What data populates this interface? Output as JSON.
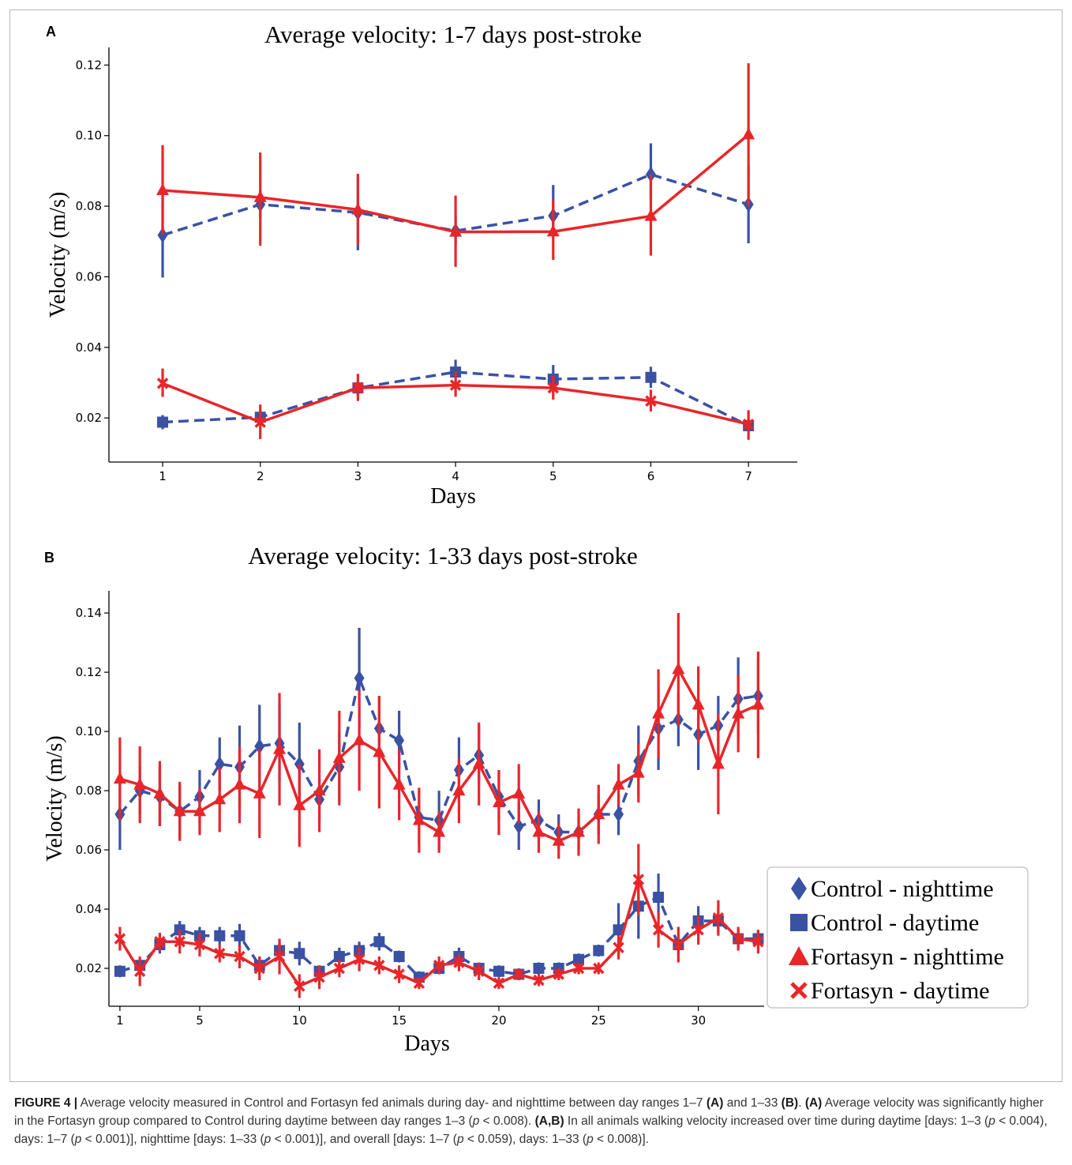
{
  "panels": {
    "a": {
      "letter": "A"
    },
    "b": {
      "letter": "B"
    }
  },
  "chart_data": [
    {
      "type": "line",
      "title": "Average velocity: 1-7 days post-stroke",
      "xlabel": "Days",
      "ylabel": "Velocity (m/s)",
      "x": [
        1,
        2,
        3,
        4,
        5,
        6,
        7
      ],
      "xticks": [
        1,
        2,
        3,
        4,
        5,
        6,
        7
      ],
      "yticks": [
        0.02,
        0.04,
        0.06,
        0.08,
        0.1,
        0.12
      ],
      "ytick_labels": [
        "0.02",
        "0.04",
        "0.06",
        "0.08",
        "0.10",
        "0.12"
      ],
      "xlim": [
        0.45,
        7.5
      ],
      "ylim": [
        0.0075,
        0.125
      ],
      "series": [
        {
          "name": "Control - nighttime",
          "color": "#3a52a4",
          "marker": "diamond",
          "linestyle": "dashed",
          "values": [
            0.0718,
            0.0805,
            0.0782,
            0.073,
            0.0773,
            0.089,
            0.0805
          ],
          "err_low": [
            0.0598,
            0.0765,
            0.0675,
            0.069,
            0.0725,
            0.082,
            0.0695
          ],
          "err_high": [
            0.0835,
            0.0845,
            0.088,
            0.077,
            0.086,
            0.0978,
            0.0915
          ]
        },
        {
          "name": "Control - daytime",
          "color": "#3a52a4",
          "marker": "square",
          "linestyle": "dashed",
          "values": [
            0.0188,
            0.0202,
            0.0285,
            0.033,
            0.031,
            0.0315,
            0.0178
          ],
          "err_low": [
            0.0168,
            0.0182,
            0.026,
            0.0302,
            0.0272,
            0.0285,
            0.0162
          ],
          "err_high": [
            0.0208,
            0.0222,
            0.0308,
            0.0365,
            0.035,
            0.0345,
            0.0195
          ]
        },
        {
          "name": "Fortasyn - nighttime",
          "color": "#e8262a",
          "marker": "triangle",
          "linestyle": "solid",
          "values": [
            0.0845,
            0.0825,
            0.079,
            0.0727,
            0.0728,
            0.0772,
            0.1003
          ],
          "err_low": [
            0.072,
            0.0688,
            0.069,
            0.0628,
            0.0648,
            0.066,
            0.08
          ],
          "err_high": [
            0.0973,
            0.0952,
            0.0892,
            0.083,
            0.082,
            0.089,
            0.1205
          ]
        },
        {
          "name": "Fortasyn - daytime",
          "color": "#e8262a",
          "marker": "x",
          "linestyle": "solid",
          "values": [
            0.0298,
            0.0188,
            0.0285,
            0.0293,
            0.0285,
            0.0248,
            0.0182
          ],
          "err_low": [
            0.026,
            0.014,
            0.0248,
            0.026,
            0.0252,
            0.0218,
            0.0138
          ],
          "err_high": [
            0.034,
            0.0238,
            0.0325,
            0.033,
            0.032,
            0.028,
            0.0222
          ]
        }
      ]
    },
    {
      "type": "line",
      "title": "Average velocity: 1-33 days post-stroke",
      "xlabel": "Days",
      "ylabel": "Velocity (m/s)",
      "x": [
        1,
        2,
        3,
        4,
        5,
        6,
        7,
        8,
        9,
        10,
        11,
        12,
        13,
        14,
        15,
        16,
        17,
        18,
        19,
        20,
        21,
        22,
        23,
        24,
        25,
        26,
        27,
        28,
        29,
        30,
        31,
        32,
        33
      ],
      "xticks": [
        1,
        5,
        10,
        15,
        20,
        25,
        30
      ],
      "yticks": [
        0.02,
        0.04,
        0.06,
        0.08,
        0.1,
        0.12,
        0.14
      ],
      "ytick_labels": [
        "0.02",
        "0.04",
        "0.06",
        "0.08",
        "0.10",
        "0.12",
        "0.14"
      ],
      "xlim": [
        0.45,
        33.3
      ],
      "ylim": [
        0.0072,
        0.1475
      ],
      "legend_position": "lower-right (outside axes)",
      "series": [
        {
          "name": "Control - nighttime",
          "color": "#3a52a4",
          "marker": "diamond",
          "linestyle": "dashed",
          "values": [
            0.072,
            0.08,
            0.078,
            0.073,
            0.078,
            0.089,
            0.088,
            0.095,
            0.096,
            0.089,
            0.077,
            0.088,
            0.118,
            0.101,
            0.097,
            0.071,
            0.07,
            0.087,
            0.092,
            0.078,
            0.068,
            0.07,
            0.066,
            0.066,
            0.072,
            0.072,
            0.09,
            0.101,
            0.104,
            0.099,
            0.102,
            0.111,
            0.112
          ],
          "err": [
            0.012,
            0.008,
            0.01,
            0.009,
            0.009,
            0.009,
            0.014,
            0.014,
            0.013,
            0.014,
            0.007,
            0.012,
            0.017,
            0.011,
            0.01,
            0.009,
            0.01,
            0.011,
            0.01,
            0.008,
            0.008,
            0.007,
            0.006,
            0.006,
            0.007,
            0.007,
            0.012,
            0.014,
            0.009,
            0.012,
            0.01,
            0.014,
            0.013
          ]
        },
        {
          "name": "Control - daytime",
          "color": "#3a52a4",
          "marker": "square",
          "linestyle": "dashed",
          "values": [
            0.019,
            0.021,
            0.028,
            0.033,
            0.031,
            0.031,
            0.031,
            0.021,
            0.026,
            0.025,
            0.019,
            0.024,
            0.026,
            0.029,
            0.024,
            0.017,
            0.02,
            0.024,
            0.02,
            0.019,
            0.018,
            0.02,
            0.02,
            0.023,
            0.026,
            0.033,
            0.041,
            0.044,
            0.028,
            0.036,
            0.036,
            0.03,
            0.03
          ],
          "err": [
            0.002,
            0.002,
            0.003,
            0.003,
            0.003,
            0.003,
            0.004,
            0.003,
            0.003,
            0.004,
            0.002,
            0.003,
            0.003,
            0.003,
            0.002,
            0.002,
            0.002,
            0.003,
            0.002,
            0.002,
            0.002,
            0.002,
            0.002,
            0.002,
            0.002,
            0.009,
            0.011,
            0.008,
            0.003,
            0.005,
            0.004,
            0.003,
            0.003
          ]
        },
        {
          "name": "Fortasyn - nighttime",
          "color": "#e8262a",
          "marker": "triangle",
          "linestyle": "solid",
          "values": [
            0.084,
            0.082,
            0.079,
            0.073,
            0.073,
            0.077,
            0.082,
            0.079,
            0.094,
            0.075,
            0.08,
            0.091,
            0.097,
            0.093,
            0.082,
            0.07,
            0.066,
            0.08,
            0.089,
            0.076,
            0.079,
            0.066,
            0.063,
            0.066,
            0.072,
            0.082,
            0.086,
            0.106,
            0.121,
            0.109,
            0.089,
            0.106,
            0.109
          ],
          "err": [
            0.014,
            0.013,
            0.011,
            0.01,
            0.008,
            0.011,
            0.013,
            0.015,
            0.019,
            0.014,
            0.014,
            0.016,
            0.017,
            0.019,
            0.012,
            0.011,
            0.007,
            0.011,
            0.014,
            0.011,
            0.01,
            0.007,
            0.006,
            0.008,
            0.01,
            0.007,
            0.01,
            0.015,
            0.019,
            0.013,
            0.017,
            0.013,
            0.018
          ]
        },
        {
          "name": "Fortasyn - daytime",
          "color": "#e8262a",
          "marker": "x",
          "linestyle": "solid",
          "values": [
            0.03,
            0.019,
            0.029,
            0.029,
            0.028,
            0.025,
            0.024,
            0.02,
            0.024,
            0.014,
            0.017,
            0.02,
            0.023,
            0.021,
            0.018,
            0.015,
            0.021,
            0.022,
            0.019,
            0.015,
            0.018,
            0.016,
            0.018,
            0.02,
            0.02,
            0.027,
            0.05,
            0.033,
            0.028,
            0.033,
            0.037,
            0.03,
            0.029
          ],
          "err": [
            0.004,
            0.005,
            0.003,
            0.004,
            0.004,
            0.003,
            0.004,
            0.004,
            0.006,
            0.004,
            0.004,
            0.003,
            0.004,
            0.003,
            0.003,
            0.002,
            0.003,
            0.003,
            0.003,
            0.002,
            0.002,
            0.002,
            0.002,
            0.002,
            0.002,
            0.004,
            0.012,
            0.006,
            0.006,
            0.005,
            0.006,
            0.004,
            0.004
          ]
        }
      ]
    }
  ],
  "caption": {
    "label": "FIGURE 4 |",
    "text_html": " Average velocity measured in Control and Fortasyn fed animals during day- and nighttime between day ranges 1–7 <b class=\"cap-strong\">(A)</b> and 1–33 <b class=\"cap-strong\">(B)</b>. <b class=\"cap-strong\">(A)</b> Average velocity was significantly higher in the Fortasyn group compared to Control during daytime between day ranges 1–3 (<i>p</i> &lt; 0.008). <b class=\"cap-strong\">(A,B)</b> In all animals walking velocity increased over time during daytime [days: 1–3 (<i>p</i> &lt; 0.004), days: 1–7 (<i>p</i> &lt; 0.001)], nighttime [days: 1–33 (<i>p</i> &lt; 0.001)], and overall [days: 1–7 (<i>p</i> &lt; 0.059), days: 1–33 (<i>p</i> &lt; 0.008)]."
  }
}
